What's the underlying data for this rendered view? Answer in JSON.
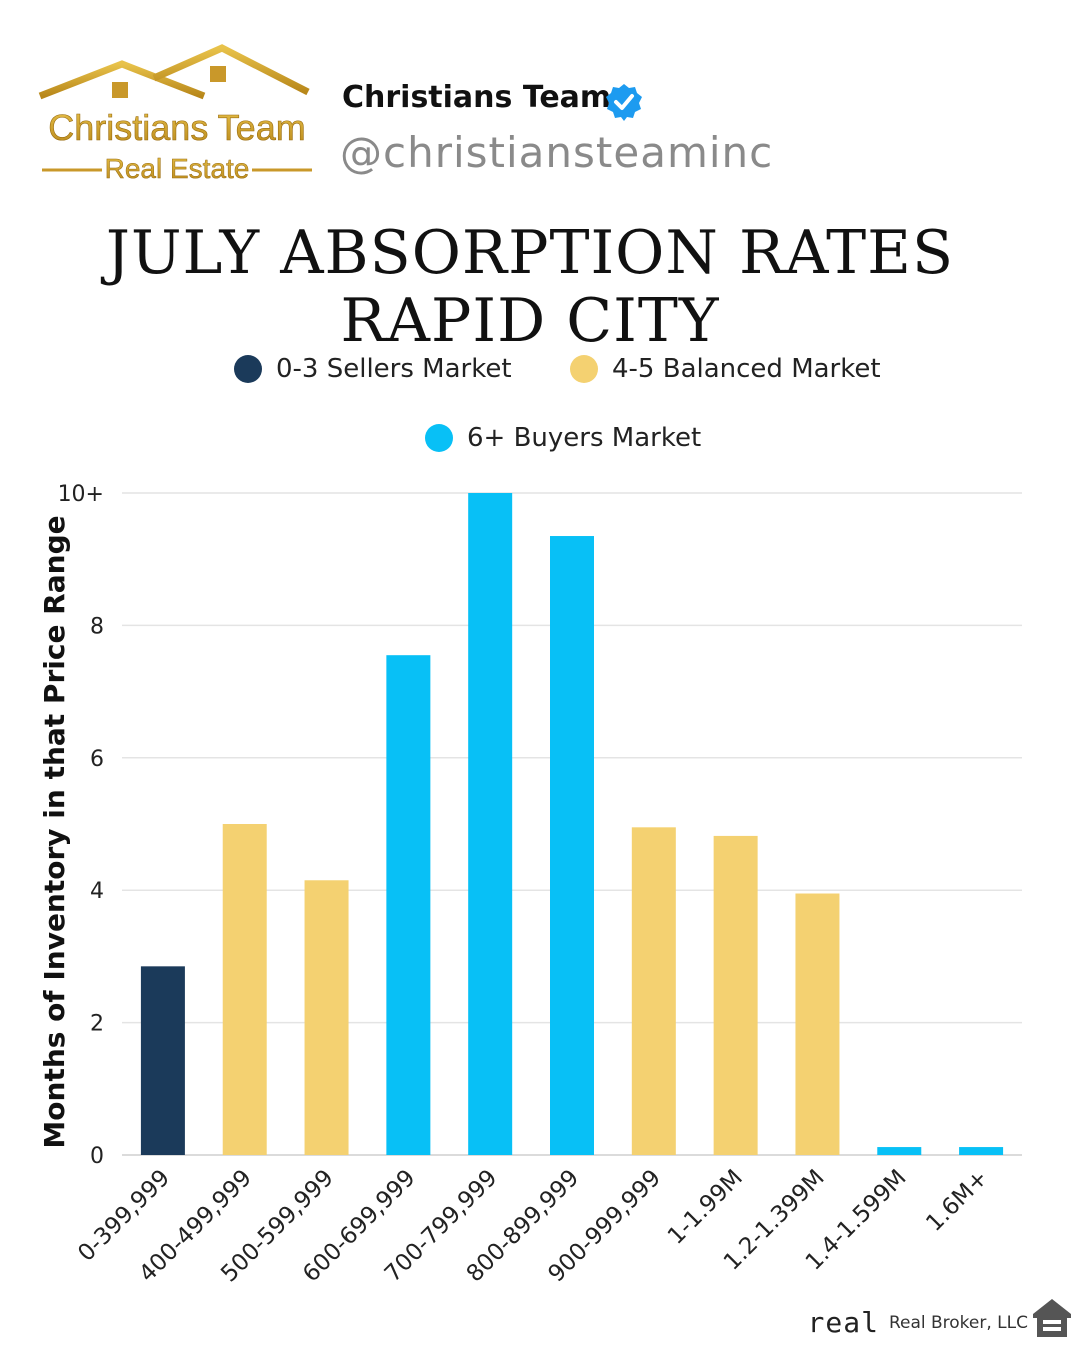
{
  "brand": {
    "logo_line1": "Christians Team",
    "logo_line2": "Real Estate",
    "profile_name": "Christians Team",
    "handle": "@christiansteaminc",
    "badge_icon": "verified-badge-icon"
  },
  "title": {
    "line1": "JULY ABSORPTION RATES",
    "line2": "RAPID CITY"
  },
  "legend": [
    {
      "label": "0-3 Sellers Market",
      "color": "#1b3a5a"
    },
    {
      "label": "4-5 Balanced Market",
      "color": "#f4d171"
    },
    {
      "label": "6+ Buyers Market",
      "color": "#08c0f6"
    }
  ],
  "chart_data": {
    "type": "bar",
    "categories": [
      "0-399,999",
      "400-499,999",
      "500-599,999",
      "600-699,999",
      "700-799,999",
      "800-899,999",
      "900-999,999",
      "1-1.99M",
      "1.2-1.399M",
      "1.4-1.599M",
      "1.6M+"
    ],
    "values": [
      2.85,
      5.0,
      4.15,
      7.55,
      10,
      9.35,
      4.95,
      4.82,
      3.95,
      0.12,
      0.12
    ],
    "colors": [
      "#1b3a5a",
      "#f4d171",
      "#f4d171",
      "#08c0f6",
      "#08c0f6",
      "#08c0f6",
      "#f4d171",
      "#f4d171",
      "#f4d171",
      "#08c0f6",
      "#08c0f6"
    ],
    "ylabel": "Months of Inventory in that Price Range",
    "xlabel": "",
    "ylim": [
      0,
      10
    ],
    "yticks": [
      "0",
      "2",
      "4",
      "6",
      "8",
      "10+"
    ],
    "grid": true,
    "legend_position": "top"
  },
  "footer": {
    "broker_logo": "real",
    "broker_name": "Real Broker, LLC",
    "housing_icon": "equal-housing-icon"
  }
}
